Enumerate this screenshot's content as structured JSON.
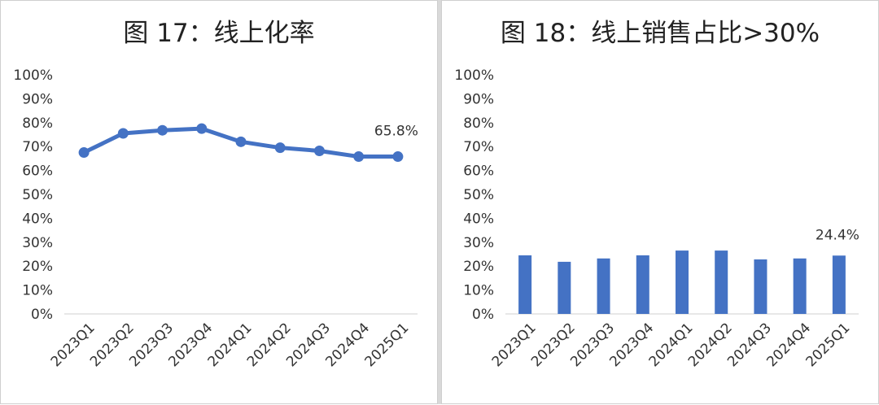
{
  "chart_data": [
    {
      "type": "line",
      "title": "图 17：线上化率",
      "categories": [
        "2023Q1",
        "2023Q2",
        "2023Q3",
        "2023Q4",
        "2024Q1",
        "2024Q2",
        "2024Q3",
        "2024Q4",
        "2025Q1"
      ],
      "series": [
        {
          "values": [
            67.5,
            75.5,
            76.8,
            77.5,
            72.0,
            69.5,
            68.2,
            65.8,
            65.8
          ]
        }
      ],
      "y_ticks": [
        "0%",
        "10%",
        "20%",
        "30%",
        "40%",
        "50%",
        "60%",
        "70%",
        "80%",
        "90%",
        "100%"
      ],
      "ylim": [
        0,
        100
      ],
      "data_labels": [
        {
          "index": 8,
          "text": "65.8%"
        }
      ],
      "color": "#4472c4",
      "grid": false
    },
    {
      "type": "bar",
      "title": "图 18：线上销售占比>30%",
      "categories": [
        "2023Q1",
        "2023Q2",
        "2023Q3",
        "2023Q4",
        "2024Q1",
        "2024Q2",
        "2024Q3",
        "2024Q4",
        "2025Q1"
      ],
      "series": [
        {
          "values": [
            24.5,
            21.8,
            23.2,
            24.5,
            26.5,
            26.5,
            22.8,
            23.2,
            24.4
          ]
        }
      ],
      "y_ticks": [
        "0%",
        "10%",
        "20%",
        "30%",
        "40%",
        "50%",
        "60%",
        "70%",
        "80%",
        "90%",
        "100%"
      ],
      "ylim": [
        0,
        100
      ],
      "data_labels": [
        {
          "index": 8,
          "text": "24.4%"
        }
      ],
      "color": "#4472c4",
      "grid": false
    }
  ]
}
